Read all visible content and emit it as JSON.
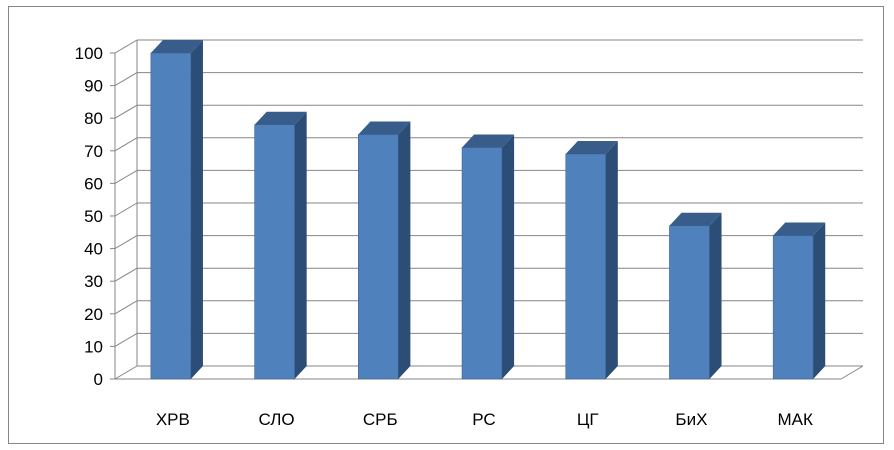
{
  "chart_data": {
    "type": "bar",
    "style": "3d-column",
    "categories": [
      "ХРВ",
      "СЛО",
      "СРБ",
      "РС",
      "ЦГ",
      "БиХ",
      "МАК"
    ],
    "values": [
      100,
      78,
      75,
      71,
      69,
      47,
      44
    ],
    "yticks": [
      0,
      10,
      20,
      30,
      40,
      50,
      60,
      70,
      80,
      90,
      100
    ],
    "ylim": [
      0,
      100
    ],
    "grid": true,
    "legend": "none",
    "title": "",
    "xlabel": "",
    "ylabel": "",
    "colors": {
      "bar_front": "#4F81BD",
      "bar_side": "#2C4D75",
      "bar_top": "#385D8A",
      "grid": "#868686",
      "axis": "#868686"
    }
  }
}
